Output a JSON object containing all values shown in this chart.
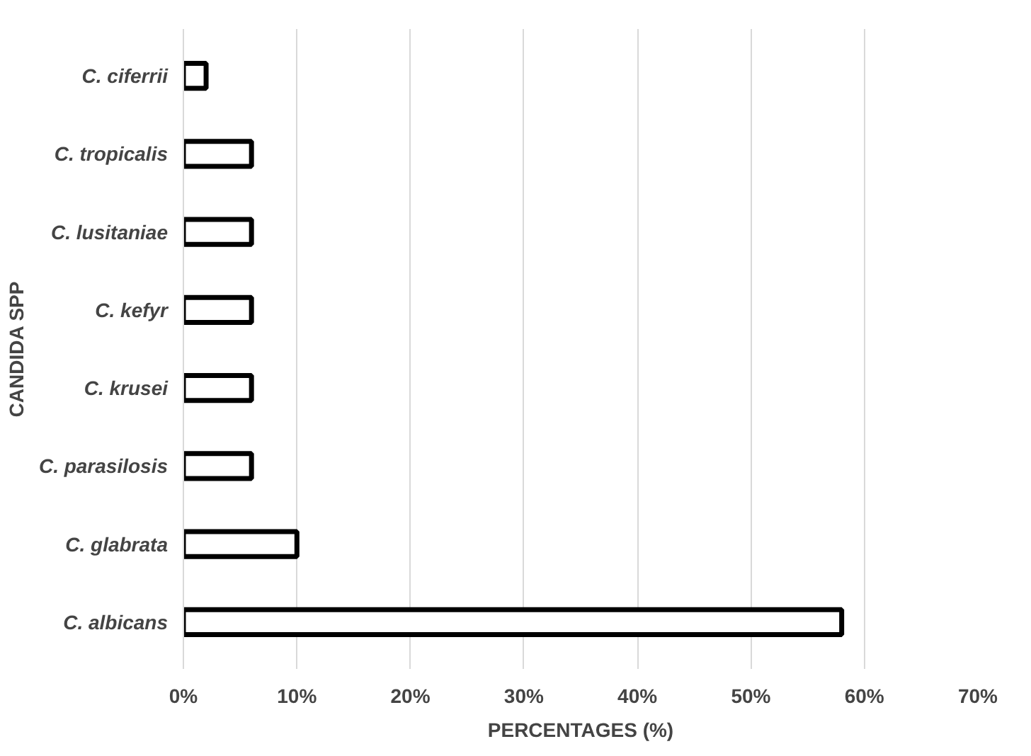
{
  "chart_data": {
    "type": "bar",
    "orientation": "horizontal",
    "xlabel": "PERCENTAGES (%)",
    "ylabel": "CANDIDA SPP",
    "categories": [
      "C. ciferrii",
      "C. tropicalis",
      "C. lusitaniae",
      "C. kefyr",
      "C. krusei",
      "C. parasilosis",
      "C. glabrata",
      "C. albicans"
    ],
    "values": [
      2,
      6,
      6,
      6,
      6,
      6,
      10,
      58
    ],
    "color": "#ffffff",
    "xlim": [
      0,
      70
    ],
    "xticks": [
      {
        "value": 0,
        "label": "0%"
      },
      {
        "value": 10,
        "label": "10%"
      },
      {
        "value": 20,
        "label": "20%"
      },
      {
        "value": 30,
        "label": "30%"
      },
      {
        "value": 40,
        "label": "40%"
      },
      {
        "value": 50,
        "label": "50%"
      },
      {
        "value": 60,
        "label": "60%"
      },
      {
        "value": 70,
        "label": "70%"
      }
    ],
    "grid": "x"
  }
}
